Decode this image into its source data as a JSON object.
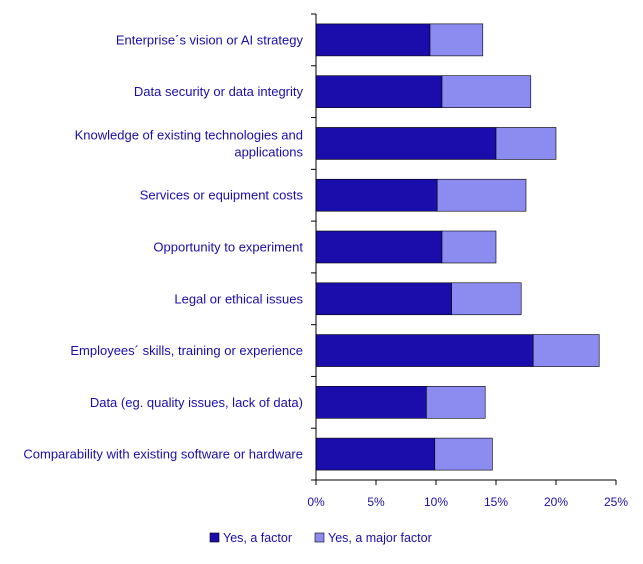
{
  "chart_data": {
    "type": "bar",
    "orientation": "horizontal",
    "stacked": true,
    "categories": [
      "Enterprise´s vision or AI strategy",
      "Data security or data integrity",
      "Knowledge of existing technologies and applications",
      "Services or equipment costs",
      "Opportunity to experiment",
      "Legal or ethical issues",
      "Employees´ skills, training or experience",
      "Data (eg. quality issues, lack of data)",
      "Comparability with existing software or hardware"
    ],
    "category_label_lines": [
      [
        "Enterprise´s vision or AI strategy"
      ],
      [
        "Data security or data integrity"
      ],
      [
        "Knowledge of existing technologies and",
        "applications"
      ],
      [
        "Services or equipment costs"
      ],
      [
        "Opportunity to experiment"
      ],
      [
        "Legal or ethical issues"
      ],
      [
        "Employees´ skills, training or experience"
      ],
      [
        "Data (eg. quality issues, lack of data)"
      ],
      [
        "Comparability with existing software or hardware"
      ]
    ],
    "series": [
      {
        "name": "Yes, a factor",
        "color": "#1a0dab",
        "values": [
          9.5,
          10.5,
          15.0,
          10.1,
          10.5,
          11.3,
          18.1,
          9.2,
          9.9
        ]
      },
      {
        "name": "Yes, a major factor",
        "color": "#8c8cf0",
        "values": [
          4.4,
          7.4,
          5.0,
          7.4,
          4.5,
          5.8,
          5.5,
          4.9,
          4.8
        ]
      }
    ],
    "xlim": [
      0,
      25
    ],
    "x_ticks": [
      0,
      5,
      10,
      15,
      20,
      25
    ],
    "x_tick_labels": [
      "0%",
      "5%",
      "10%",
      "15%",
      "20%",
      "25%"
    ],
    "label_color": "#1a0dab",
    "legend_position": "bottom",
    "grid": false
  }
}
